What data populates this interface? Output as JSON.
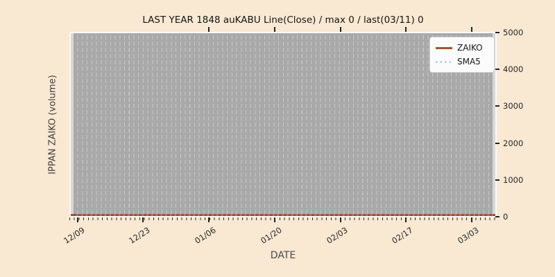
{
  "figure": {
    "title": "LAST YEAR 1848 auKABU Line(Close) / max 0 / last(03/11) 0",
    "xlabel": "DATE",
    "ylabel": "IPPAN ZAIKO (volume)",
    "background_color": "#f9e8d2",
    "plot_bg_color": "#d8d8d8",
    "band_color": "#a9a9a9"
  },
  "legend": {
    "position": "top-right",
    "items": [
      {
        "label": "ZAIKO",
        "style": "solid",
        "color": "#a0522d"
      },
      {
        "label": "SMA5",
        "style": "dotted",
        "color": "#aed4e8"
      }
    ]
  },
  "chart_data": {
    "type": "line",
    "title": "LAST YEAR 1848 auKABU Line(Close) / max 0 / last(03/11) 0",
    "xlabel": "DATE",
    "ylabel": "IPPAN ZAIKO (volume)",
    "ylim": [
      0,
      5000
    ],
    "y_ticks": [
      0,
      1000,
      2000,
      3000,
      4000,
      5000
    ],
    "y_tick_labels": [
      "5000",
      "4000",
      "3000",
      "2000",
      "1000",
      "0"
    ],
    "x_tick_labels": [
      "12/09",
      "12/23",
      "01/06",
      "01/20",
      "02/03",
      "02/17",
      "03/03"
    ],
    "x_minor_ticks": "daily",
    "grid": "vertical dashed daily gridlines on gray band",
    "legend_position": "upper right",
    "categories": [
      "12/09",
      "12/23",
      "01/06",
      "01/20",
      "02/03",
      "02/17",
      "03/03"
    ],
    "series": [
      {
        "name": "ZAIKO",
        "color": "#a0522d",
        "style": "solid",
        "values": [
          0,
          0,
          0,
          0,
          0,
          0,
          0
        ]
      },
      {
        "name": "SMA5",
        "color": "#aed4e8",
        "style": "dotted",
        "values": [
          0,
          0,
          0,
          0,
          0,
          0,
          0
        ]
      }
    ],
    "max_value": 0,
    "last_value": 0,
    "last_date": "03/11"
  }
}
